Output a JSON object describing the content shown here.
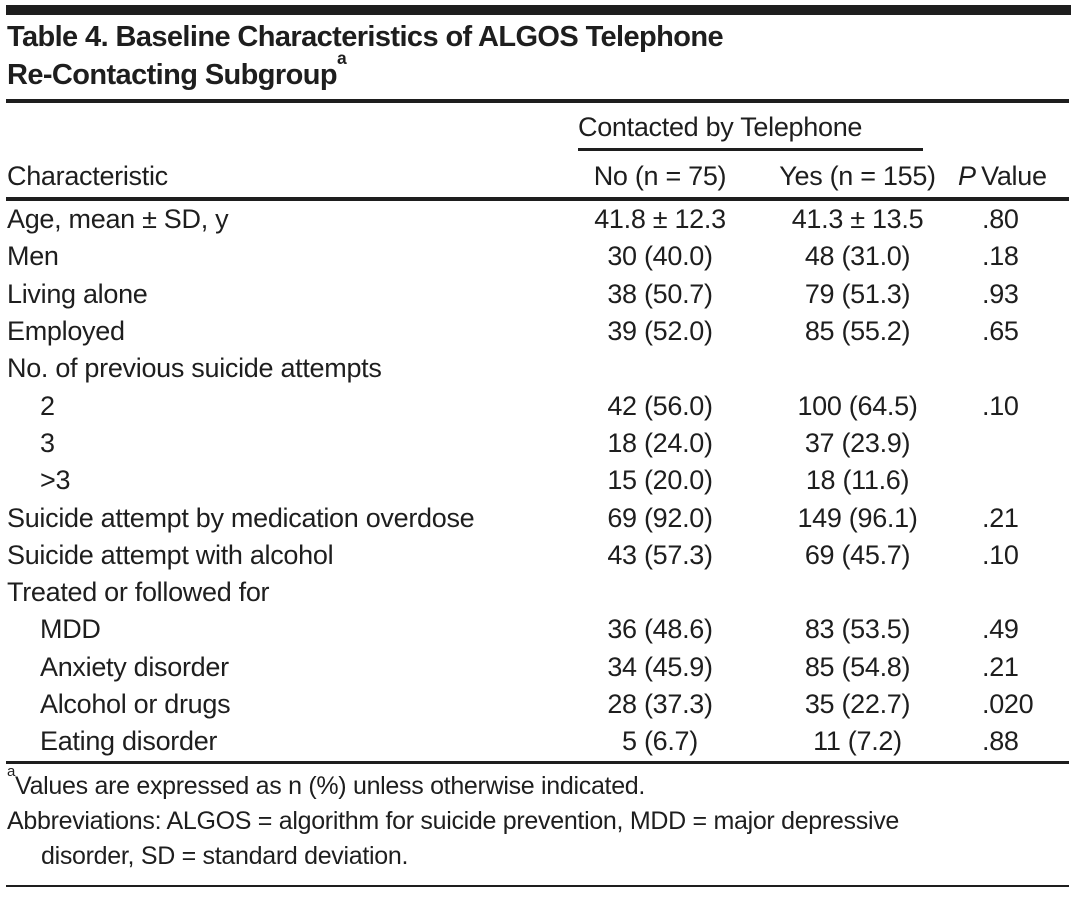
{
  "table": {
    "title_lines": [
      "Table 4. Baseline Characteristics of ALGOS Telephone",
      "Re-Contacting Subgroup"
    ],
    "title_superscript": "a",
    "spanner_label": "Contacted by Telephone",
    "columns": {
      "characteristic": "Characteristic",
      "no": "No (n = 75)",
      "yes": "Yes (n = 155)",
      "p_italic": "P",
      "p_rest": "Value"
    },
    "rows": [
      {
        "label": "Age, mean ± SD, y",
        "indent": false,
        "no": "41.8 ± 12.3",
        "yes": "41.3 ± 13.5",
        "p": ".80"
      },
      {
        "label": "Men",
        "indent": false,
        "no": "30 (40.0)",
        "yes": "48 (31.0)",
        "p": ".18"
      },
      {
        "label": "Living alone",
        "indent": false,
        "no": "38 (50.7)",
        "yes": "79 (51.3)",
        "p": ".93"
      },
      {
        "label": "Employed",
        "indent": false,
        "no": "39 (52.0)",
        "yes": "85 (55.2)",
        "p": ".65"
      },
      {
        "label": "No. of previous suicide attempts",
        "indent": false,
        "group": true,
        "no": "",
        "yes": "",
        "p": ""
      },
      {
        "label": "2",
        "indent": true,
        "no": "42 (56.0)",
        "yes": "100 (64.5)",
        "p": ".10"
      },
      {
        "label": "3",
        "indent": true,
        "no": "18 (24.0)",
        "yes": "37 (23.9)",
        "p": ""
      },
      {
        "label": ">3",
        "indent": true,
        "no": "15 (20.0)",
        "yes": "18 (11.6)",
        "p": ""
      },
      {
        "label": "Suicide attempt by medication overdose",
        "indent": false,
        "no": "69 (92.0)",
        "yes": "149 (96.1)",
        "p": ".21"
      },
      {
        "label": "Suicide attempt with alcohol",
        "indent": false,
        "no": "43 (57.3)",
        "yes": "69 (45.7)",
        "p": ".10"
      },
      {
        "label": "Treated or followed for",
        "indent": false,
        "group": true,
        "no": "",
        "yes": "",
        "p": ""
      },
      {
        "label": "MDD",
        "indent": true,
        "no": "36 (48.6)",
        "yes": "83 (53.5)",
        "p": ".49"
      },
      {
        "label": "Anxiety disorder",
        "indent": true,
        "no": "34 (45.9)",
        "yes": "85 (54.8)",
        "p": ".21"
      },
      {
        "label": "Alcohol or drugs",
        "indent": true,
        "no": "28 (37.3)",
        "yes": "35 (22.7)",
        "p": ".020"
      },
      {
        "label": "Eating disorder",
        "indent": true,
        "no": "5 (6.7)",
        "yes": "11 (7.2)",
        "p": ".88"
      }
    ],
    "footnotes": {
      "marker": "a",
      "a_text": "Values are expressed as n (%) unless otherwise indicated.",
      "abbrev_line1": "Abbreviations: ALGOS = algorithm for suicide prevention, MDD = major depressive",
      "abbrev_line2": "disorder, SD = standard deviation."
    },
    "colors": {
      "text": "#1e1e1e",
      "rule": "#1e1e1e",
      "background": "#ffffff"
    }
  }
}
